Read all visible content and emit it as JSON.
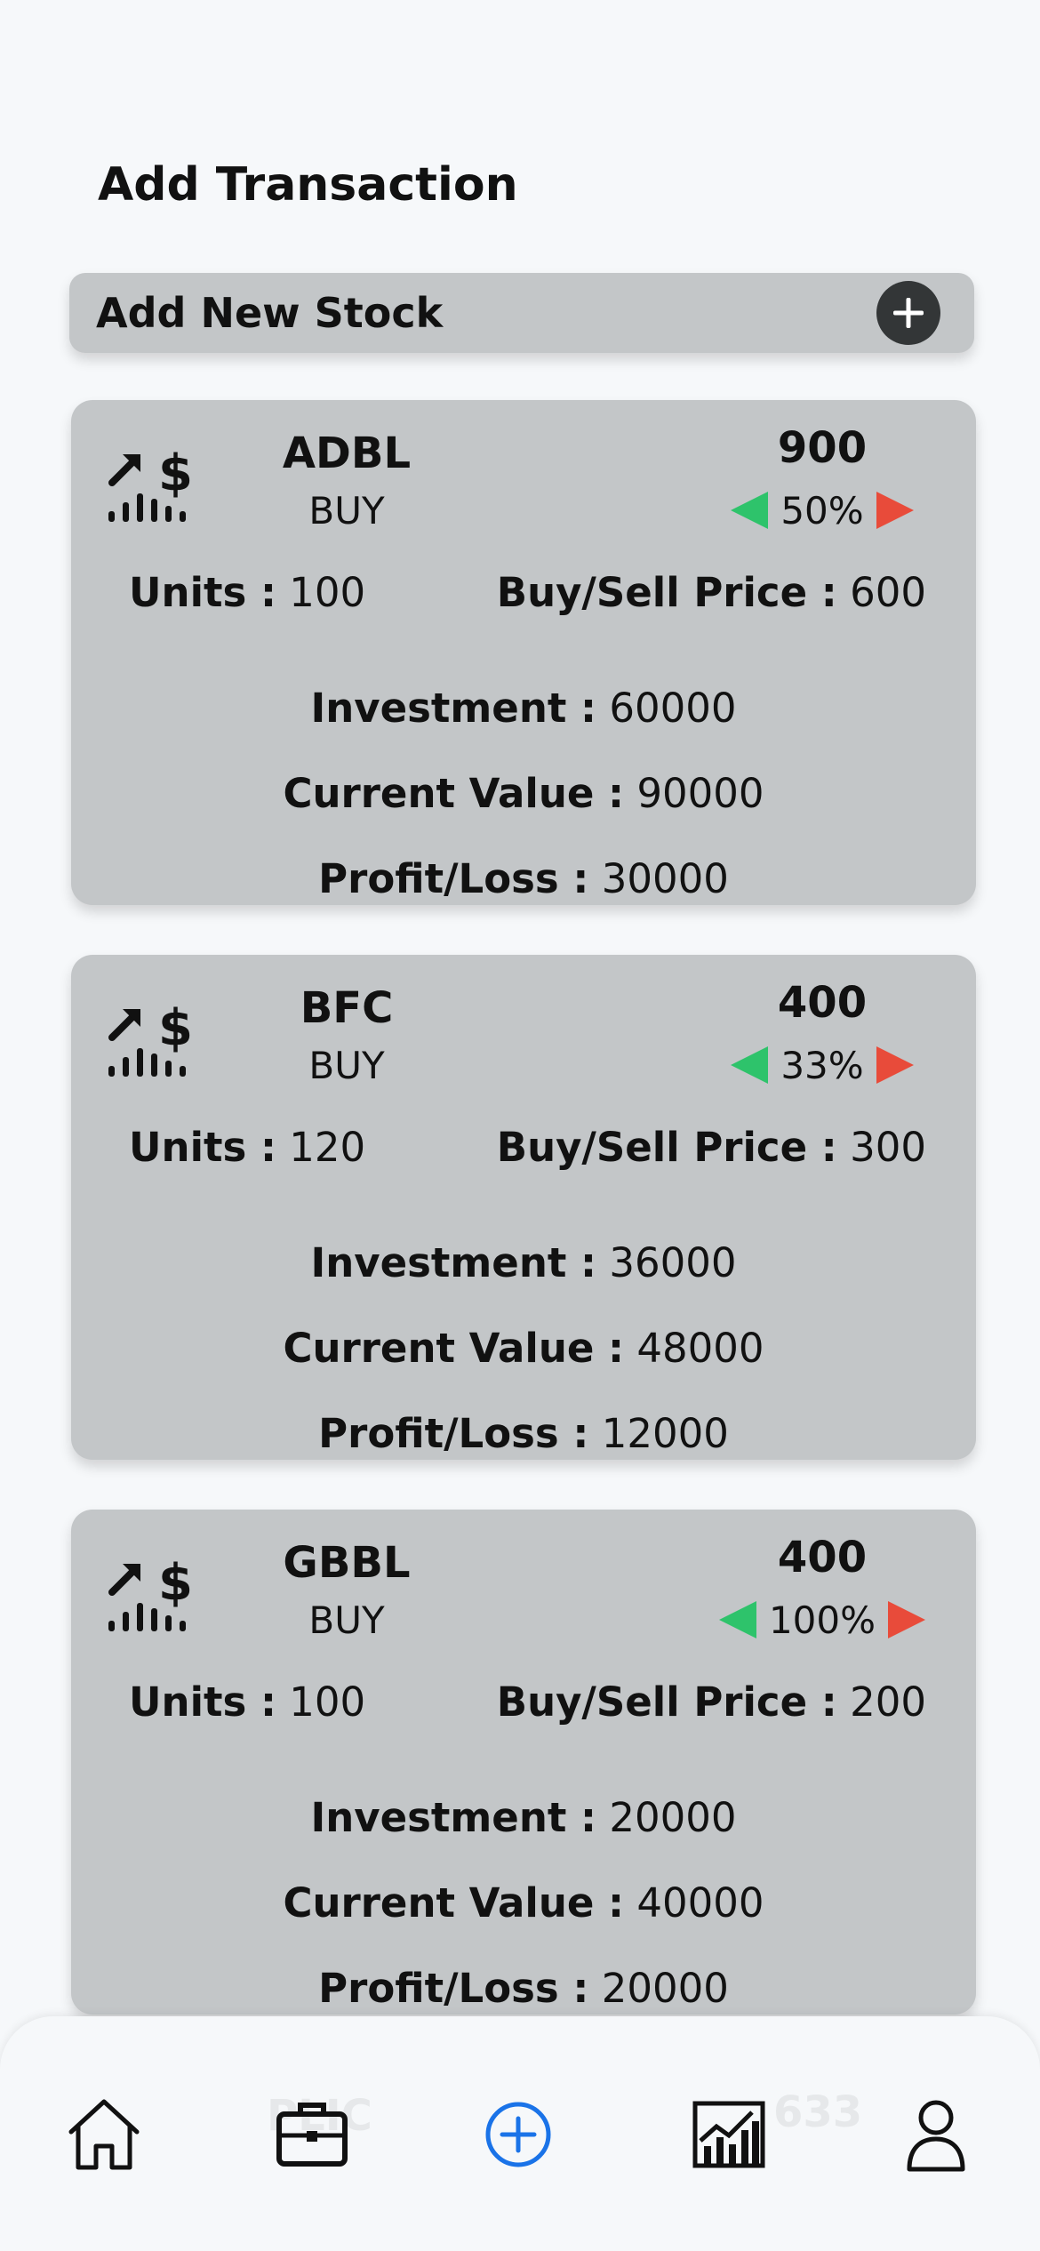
{
  "header": {
    "title": "Add Transaction"
  },
  "add_bar": {
    "label": "Add New Stock"
  },
  "cards": [
    {
      "symbol": "ADBL",
      "type": "BUY",
      "price": "900",
      "change": "50%",
      "units_label": "Units :",
      "units": "100",
      "bsp_label": "Buy/Sell Price :",
      "bsp": "600",
      "inv_label": "Investment :",
      "inv": "60000",
      "cv_label": "Current Value :",
      "cv": "90000",
      "pl_label": "Profit/Loss :",
      "pl": "30000"
    },
    {
      "symbol": "BFC",
      "type": "BUY",
      "price": "400",
      "change": "33%",
      "units_label": "Units :",
      "units": "120",
      "bsp_label": "Buy/Sell Price :",
      "bsp": "300",
      "inv_label": "Investment :",
      "inv": "36000",
      "cv_label": "Current Value :",
      "cv": "48000",
      "pl_label": "Profit/Loss :",
      "pl": "12000"
    },
    {
      "symbol": "GBBL",
      "type": "BUY",
      "price": "400",
      "change": "100%",
      "units_label": "Units :",
      "units": "100",
      "bsp_label": "Buy/Sell Price :",
      "bsp": "200",
      "inv_label": "Investment :",
      "inv": "20000",
      "cv_label": "Current Value :",
      "cv": "40000",
      "pl_label": "Profit/Loss :",
      "pl": "20000"
    }
  ],
  "ghost_card": {
    "symbol": "PLIC",
    "price": "633"
  },
  "nav": {
    "items": [
      "home-icon",
      "portfolio-briefcase-icon",
      "add-transaction-icon",
      "chart-icon",
      "profile-icon"
    ],
    "active": "add-transaction-icon",
    "active_color": "#1a73e8"
  },
  "colors": {
    "up": "#2ec36b",
    "down": "#e84b3a",
    "card": "#c3c6c8",
    "background": "#f6f8fa"
  }
}
